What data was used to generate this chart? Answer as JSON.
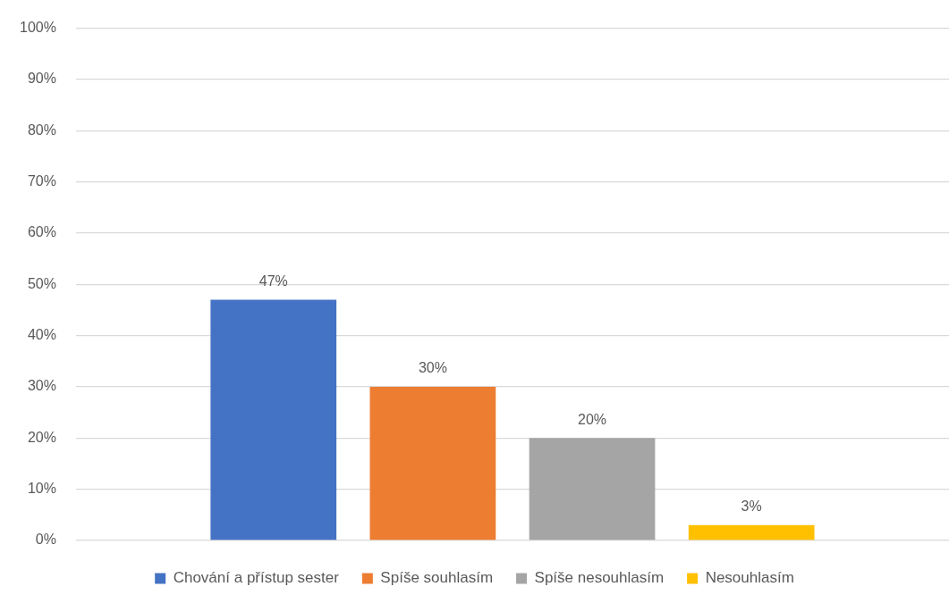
{
  "chart_data": {
    "type": "bar",
    "categories": [
      null
    ],
    "series": [
      {
        "name": "Chování a přístup sester",
        "color": "#4472c4",
        "values": [
          47
        ],
        "value_labels": [
          "47%"
        ]
      },
      {
        "name": "Spíše souhlasím",
        "color": "#ed7d31",
        "values": [
          30
        ],
        "value_labels": [
          "30%"
        ]
      },
      {
        "name": "Spíše nesouhlasím",
        "color": "#a5a5a5",
        "values": [
          20
        ],
        "value_labels": [
          "20%"
        ]
      },
      {
        "name": "Nesouhlasím",
        "color": "#ffc000",
        "values": [
          3
        ],
        "value_labels": [
          "3%"
        ]
      }
    ],
    "ylim": [
      0,
      100
    ],
    "yticks": [
      {
        "value": 0,
        "label": "0%"
      },
      {
        "value": 10,
        "label": "10%"
      },
      {
        "value": 20,
        "label": "20%"
      },
      {
        "value": 30,
        "label": "30%"
      },
      {
        "value": 40,
        "label": "40%"
      },
      {
        "value": 50,
        "label": "50%"
      },
      {
        "value": 60,
        "label": "60%"
      },
      {
        "value": 70,
        "label": "70%"
      },
      {
        "value": 80,
        "label": "80%"
      },
      {
        "value": 90,
        "label": "90%"
      },
      {
        "value": 100,
        "label": "100%"
      }
    ],
    "grid": "y",
    "legend": "bottom",
    "tick_labels": "y"
  }
}
